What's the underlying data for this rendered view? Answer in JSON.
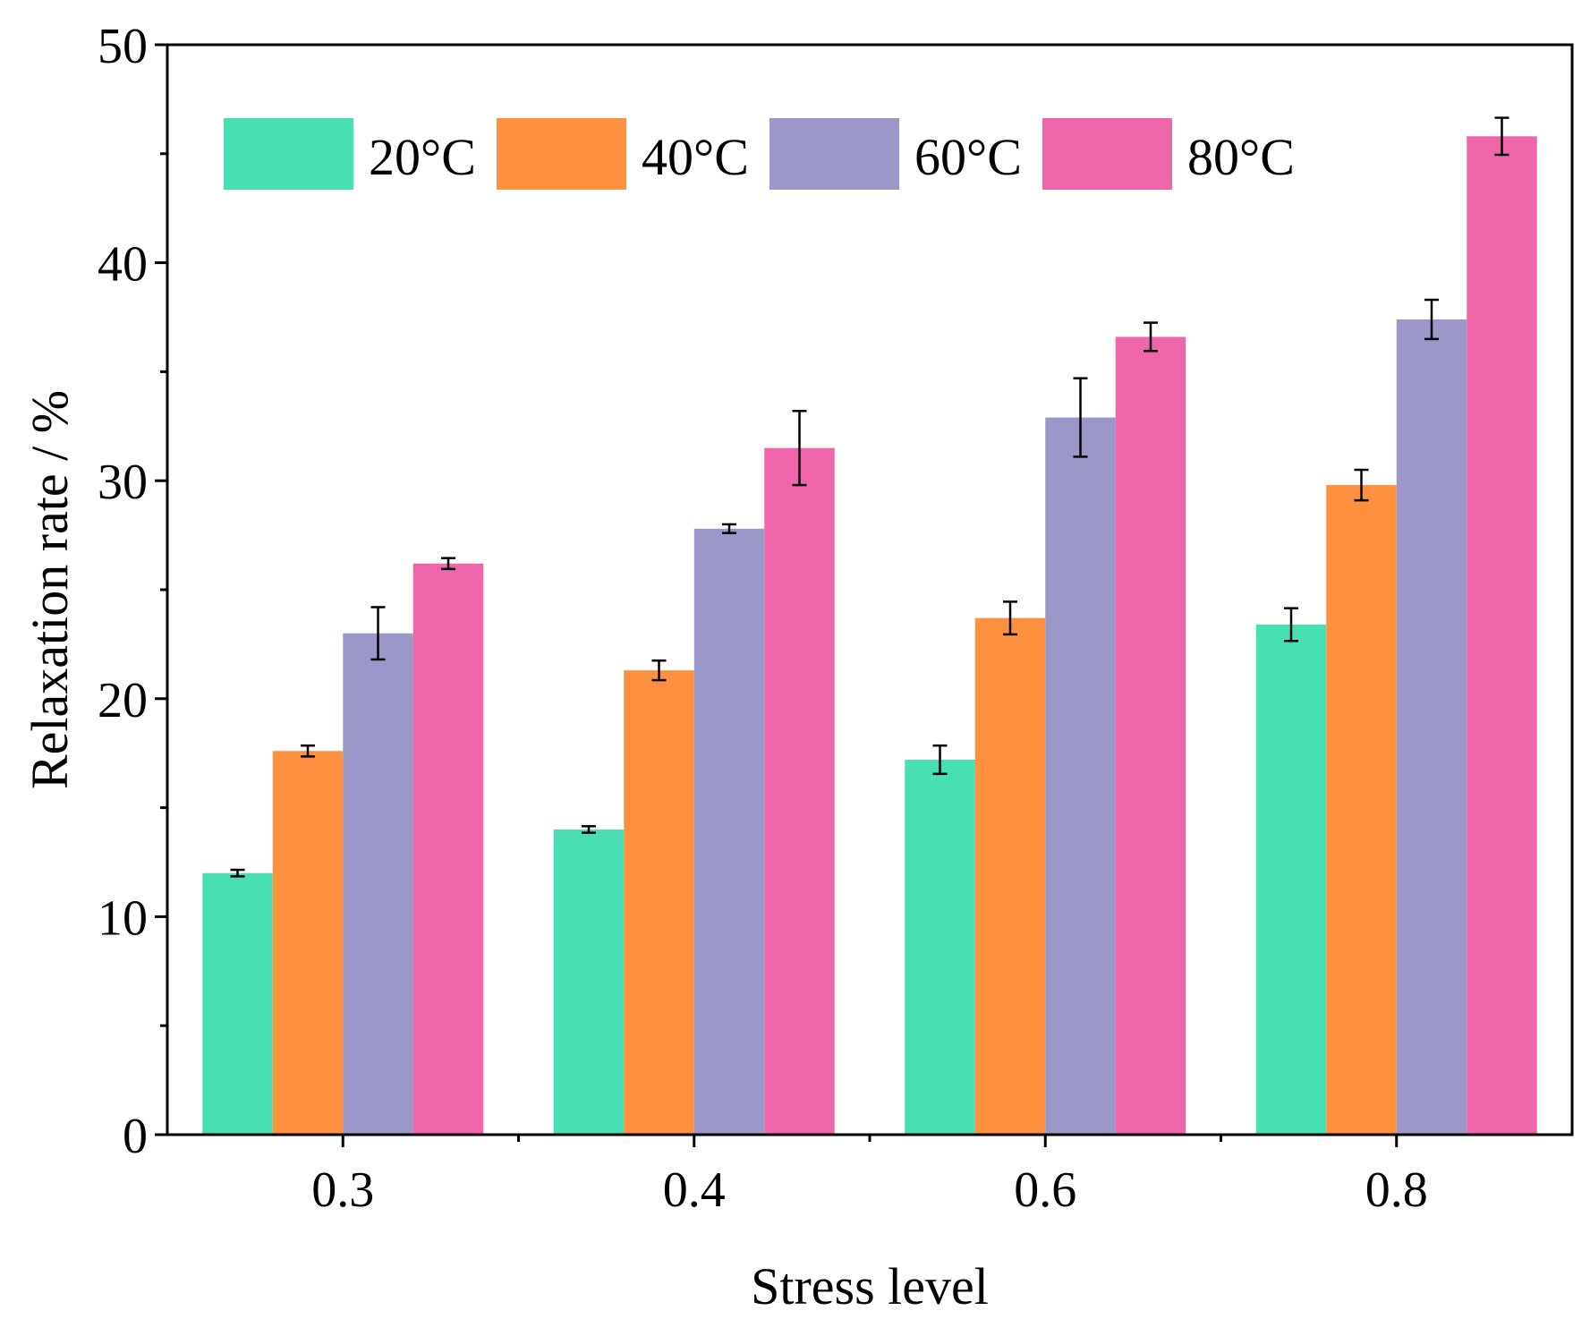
{
  "chart_data": {
    "type": "bar",
    "title": "",
    "xlabel": "Stress level",
    "ylabel": "Relaxation rate / %",
    "categories": [
      "0.3",
      "0.4",
      "0.6",
      "0.8"
    ],
    "ylim": [
      0,
      50
    ],
    "yticks": [
      "0",
      "10",
      "20",
      "30",
      "40",
      "50"
    ],
    "grid": false,
    "legend_position": "top-left",
    "series": [
      {
        "name": "20°C",
        "color": "#48E0B2",
        "values": [
          12.0,
          14.0,
          17.2,
          23.4
        ],
        "errors": [
          0.15,
          0.15,
          0.65,
          0.75
        ]
      },
      {
        "name": "40°C",
        "color": "#FF9040",
        "values": [
          17.6,
          21.3,
          23.7,
          29.8
        ],
        "errors": [
          0.25,
          0.45,
          0.75,
          0.7
        ]
      },
      {
        "name": "60°C",
        "color": "#9B97C8",
        "values": [
          23.0,
          27.8,
          32.9,
          37.4
        ],
        "errors": [
          1.2,
          0.2,
          1.8,
          0.9
        ]
      },
      {
        "name": "80°C",
        "color": "#EF67AA",
        "values": [
          26.2,
          31.5,
          36.6,
          45.8
        ],
        "errors": [
          0.25,
          1.7,
          0.65,
          0.85
        ]
      }
    ]
  }
}
